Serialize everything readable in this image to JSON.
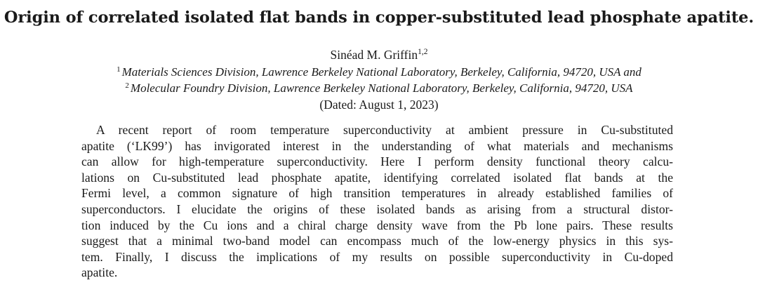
{
  "paper": {
    "title": "Origin of correlated isolated flat bands in copper-substituted lead phosphate apatite.",
    "author": {
      "name": "Sinéad M. Griffin",
      "affiliation_marks": "1,2"
    },
    "affiliations": [
      {
        "mark": "1",
        "text": "Materials Sciences Division, Lawrence Berkeley National Laboratory, Berkeley, California, 94720, USA and"
      },
      {
        "mark": "2",
        "text": "Molecular Foundry Division, Lawrence Berkeley National Laboratory, Berkeley, California, 94720, USA"
      }
    ],
    "dated": "(Dated: August 1, 2023)",
    "abstract_lines": [
      "A recent report of room temperature superconductivity at ambient pressure in Cu-substituted",
      "apatite (‘LK99’) has invigorated interest in the understanding of what materials and mechanisms",
      "can allow for high-temperature superconductivity. Here I perform density functional theory calcu-",
      "lations on Cu-substituted lead phosphate apatite, identifying correlated isolated flat bands at the",
      "Fermi level, a common signature of high transition temperatures in already established families of",
      "superconductors. I elucidate the origins of these isolated bands as arising from a structural distor-",
      "tion induced by the Cu ions and a chiral charge density wave from the Pb lone pairs. These results",
      "suggest that a minimal two-band model can encompass much of the low-energy physics in this sys-",
      "tem. Finally, I discuss the implications of my results on possible superconductivity in Cu-doped",
      "apatite."
    ]
  }
}
